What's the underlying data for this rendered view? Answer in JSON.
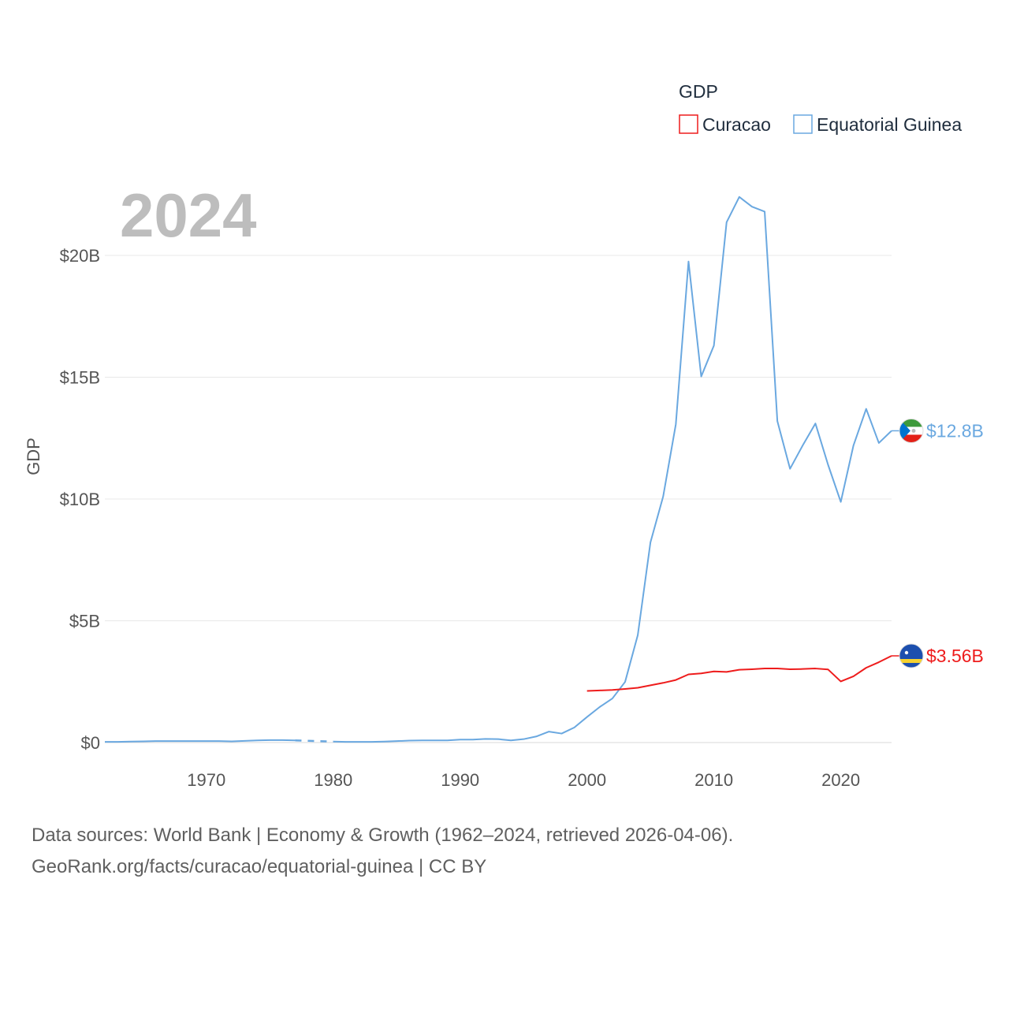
{
  "chart_data": {
    "type": "line",
    "legend_title": "GDP",
    "ylabel": "GDP",
    "year_label": "2024",
    "ylim": [
      0,
      23000000000
    ],
    "xlim": [
      1962,
      2024
    ],
    "x_ticks": [
      1970,
      1980,
      1990,
      2000,
      2010,
      2020
    ],
    "y_ticks": [
      {
        "value": 0,
        "label": "$0"
      },
      {
        "value": 5000000000,
        "label": "$5B"
      },
      {
        "value": 10000000000,
        "label": "$10B"
      },
      {
        "value": 15000000000,
        "label": "$15B"
      },
      {
        "value": 20000000000,
        "label": "$20B"
      }
    ],
    "series": [
      {
        "name": "Curacao",
        "color": "#ee1c1c",
        "end_label": "$3.56B",
        "flag": "curacao-flag",
        "points": [
          [
            2000,
            2.12
          ],
          [
            2001,
            2.14
          ],
          [
            2002,
            2.16
          ],
          [
            2003,
            2.2
          ],
          [
            2004,
            2.25
          ],
          [
            2005,
            2.35
          ],
          [
            2006,
            2.45
          ],
          [
            2007,
            2.57
          ],
          [
            2008,
            2.8
          ],
          [
            2009,
            2.84
          ],
          [
            2010,
            2.92
          ],
          [
            2011,
            2.9
          ],
          [
            2012,
            2.99
          ],
          [
            2013,
            3.01
          ],
          [
            2014,
            3.04
          ],
          [
            2015,
            3.04
          ],
          [
            2016,
            3.01
          ],
          [
            2017,
            3.02
          ],
          [
            2018,
            3.04
          ],
          [
            2019,
            3.0
          ],
          [
            2020,
            2.51
          ],
          [
            2021,
            2.72
          ],
          [
            2022,
            3.07
          ],
          [
            2023,
            3.3
          ],
          [
            2024,
            3.56
          ]
        ]
      },
      {
        "name": "Equatorial Guinea",
        "color": "#6aa8e0",
        "end_label": "$12.8B",
        "flag": "equatorial-guinea-flag",
        "points": [
          [
            1962,
            0.03
          ],
          [
            1963,
            0.03
          ],
          [
            1964,
            0.04
          ],
          [
            1965,
            0.05
          ],
          [
            1966,
            0.06
          ],
          [
            1967,
            0.06
          ],
          [
            1968,
            0.06
          ],
          [
            1969,
            0.06
          ],
          [
            1970,
            0.06
          ],
          [
            1971,
            0.06
          ],
          [
            1972,
            0.05
          ],
          [
            1973,
            0.07
          ],
          [
            1974,
            0.09
          ],
          [
            1975,
            0.1
          ],
          [
            1976,
            0.1
          ],
          [
            1977,
            0.09
          ],
          [
            1978,
            null
          ],
          [
            1979,
            null
          ],
          [
            1980,
            0.04
          ],
          [
            1981,
            0.03
          ],
          [
            1982,
            0.03
          ],
          [
            1983,
            0.03
          ],
          [
            1984,
            0.04
          ],
          [
            1985,
            0.06
          ],
          [
            1986,
            0.08
          ],
          [
            1987,
            0.09
          ],
          [
            1988,
            0.09
          ],
          [
            1989,
            0.09
          ],
          [
            1990,
            0.12
          ],
          [
            1991,
            0.12
          ],
          [
            1992,
            0.15
          ],
          [
            1993,
            0.14
          ],
          [
            1994,
            0.09
          ],
          [
            1995,
            0.14
          ],
          [
            1996,
            0.25
          ],
          [
            1997,
            0.45
          ],
          [
            1998,
            0.37
          ],
          [
            1999,
            0.62
          ],
          [
            2000,
            1.05
          ],
          [
            2001,
            1.46
          ],
          [
            2002,
            1.81
          ],
          [
            2003,
            2.49
          ],
          [
            2004,
            4.41
          ],
          [
            2005,
            8.22
          ],
          [
            2006,
            10.1
          ],
          [
            2007,
            13.07
          ],
          [
            2008,
            19.75
          ],
          [
            2009,
            15.03
          ],
          [
            2010,
            16.3
          ],
          [
            2011,
            21.36
          ],
          [
            2012,
            22.4
          ],
          [
            2013,
            22.0
          ],
          [
            2014,
            21.8
          ],
          [
            2015,
            13.2
          ],
          [
            2016,
            11.24
          ],
          [
            2017,
            12.2
          ],
          [
            2018,
            13.1
          ],
          [
            2019,
            11.4
          ],
          [
            2020,
            9.88
          ],
          [
            2021,
            12.2
          ],
          [
            2022,
            13.7
          ],
          [
            2023,
            12.3
          ],
          [
            2024,
            12.8
          ]
        ]
      }
    ],
    "gap_segment": {
      "series": "Equatorial Guinea",
      "from": [
        1977,
        0.09
      ],
      "to": [
        1980,
        0.04
      ]
    }
  },
  "footer": {
    "line1": "Data sources: World Bank | Economy & Growth (1962–2024, retrieved 2026-04-06).",
    "line2": "GeoRank.org/facts/curacao/equatorial-guinea | CC BY"
  }
}
